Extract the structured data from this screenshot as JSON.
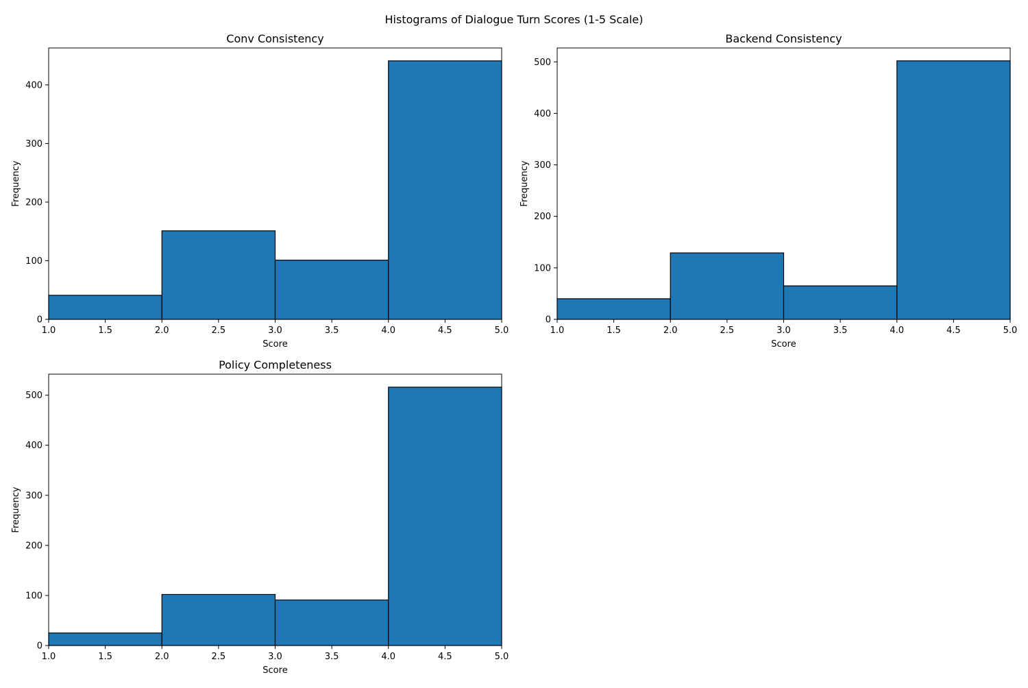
{
  "figure": {
    "title": "Histograms of Dialogue Turn Scores (1-5 Scale)"
  },
  "colors": {
    "bar_fill": "#1f77b4",
    "bar_edge": "#000000",
    "axis": "#000000",
    "background": "#ffffff"
  },
  "chart_data": [
    {
      "type": "bar",
      "title": "Conv Consistency",
      "xlabel": "Score",
      "ylabel": "Frequency",
      "bin_edges": [
        1.0,
        2.0,
        3.0,
        4.0,
        5.0
      ],
      "values": [
        41,
        151,
        101,
        441
      ],
      "xlim": [
        1.0,
        5.0
      ],
      "ylim": [
        0,
        463
      ],
      "x_ticks": [
        "1.0",
        "1.5",
        "2.0",
        "2.5",
        "3.0",
        "3.5",
        "4.0",
        "4.5",
        "5.0"
      ],
      "y_ticks": [
        "0",
        "100",
        "200",
        "300",
        "400"
      ],
      "grid": false
    },
    {
      "type": "bar",
      "title": "Backend Consistency",
      "xlabel": "Score",
      "ylabel": "Frequency",
      "bin_edges": [
        1.0,
        2.0,
        3.0,
        4.0,
        5.0
      ],
      "values": [
        40,
        129,
        65,
        502
      ],
      "xlim": [
        1.0,
        5.0
      ],
      "ylim": [
        0,
        527
      ],
      "x_ticks": [
        "1.0",
        "1.5",
        "2.0",
        "2.5",
        "3.0",
        "3.5",
        "4.0",
        "4.5",
        "5.0"
      ],
      "y_ticks": [
        "0",
        "100",
        "200",
        "300",
        "400",
        "500"
      ],
      "grid": false
    },
    {
      "type": "bar",
      "title": "Policy Completeness",
      "xlabel": "Score",
      "ylabel": "Frequency",
      "bin_edges": [
        1.0,
        2.0,
        3.0,
        4.0,
        5.0
      ],
      "values": [
        25,
        102,
        91,
        516
      ],
      "xlim": [
        1.0,
        5.0
      ],
      "ylim": [
        0,
        542
      ],
      "x_ticks": [
        "1.0",
        "1.5",
        "2.0",
        "2.5",
        "3.0",
        "3.5",
        "4.0",
        "4.5",
        "5.0"
      ],
      "y_ticks": [
        "0",
        "100",
        "200",
        "300",
        "400",
        "500"
      ],
      "grid": false
    }
  ]
}
